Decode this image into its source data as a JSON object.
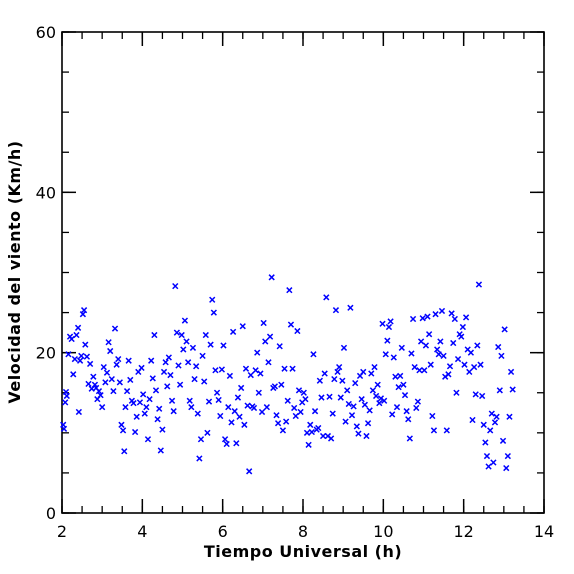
{
  "chart_data": {
    "type": "scatter",
    "xlabel": "Tiempo Universal (h)",
    "ylabel": "Velocidad del viento (Km/h)",
    "xlim": [
      2,
      14
    ],
    "ylim": [
      0,
      60
    ],
    "x_ticks": [
      2,
      4,
      6,
      8,
      10,
      12,
      14
    ],
    "y_ticks": [
      0,
      20,
      40,
      60
    ],
    "x_minor_step": 0.5,
    "y_minor_step": 5,
    "grid": false,
    "marker": "x",
    "marker_color": "#0000ff",
    "points": [
      [
        2.03,
        11.0
      ],
      [
        2.05,
        10.5
      ],
      [
        2.08,
        13.8
      ],
      [
        2.1,
        15.1
      ],
      [
        2.12,
        14.6
      ],
      [
        2.16,
        19.8
      ],
      [
        2.2,
        22.0
      ],
      [
        2.24,
        21.7
      ],
      [
        2.28,
        17.3
      ],
      [
        2.32,
        19.2
      ],
      [
        2.36,
        22.2
      ],
      [
        2.4,
        23.1
      ],
      [
        2.42,
        12.6
      ],
      [
        2.45,
        19.0
      ],
      [
        2.48,
        19.6
      ],
      [
        2.52,
        24.8
      ],
      [
        2.55,
        25.3
      ],
      [
        2.58,
        21.0
      ],
      [
        2.62,
        19.5
      ],
      [
        2.66,
        16.1
      ],
      [
        2.7,
        18.6
      ],
      [
        2.74,
        15.5
      ],
      [
        2.78,
        17.0
      ],
      [
        2.82,
        16.0
      ],
      [
        2.85,
        15.6
      ],
      [
        2.88,
        14.2
      ],
      [
        2.92,
        15.2
      ],
      [
        2.96,
        14.7
      ],
      [
        3.0,
        13.2
      ],
      [
        3.04,
        18.2
      ],
      [
        3.08,
        16.3
      ],
      [
        3.12,
        17.5
      ],
      [
        3.16,
        21.3
      ],
      [
        3.2,
        20.2
      ],
      [
        3.24,
        16.7
      ],
      [
        3.28,
        15.2
      ],
      [
        3.32,
        23.0
      ],
      [
        3.36,
        18.5
      ],
      [
        3.4,
        19.2
      ],
      [
        3.44,
        16.3
      ],
      [
        3.48,
        11.0
      ],
      [
        3.52,
        10.3
      ],
      [
        3.55,
        7.7
      ],
      [
        3.58,
        13.2
      ],
      [
        3.62,
        15.2
      ],
      [
        3.66,
        19.0
      ],
      [
        3.7,
        16.6
      ],
      [
        3.74,
        14.0
      ],
      [
        3.78,
        13.7
      ],
      [
        3.82,
        10.1
      ],
      [
        3.86,
        12.0
      ],
      [
        3.9,
        17.6
      ],
      [
        3.94,
        13.8
      ],
      [
        3.98,
        18.1
      ],
      [
        4.02,
        14.8
      ],
      [
        4.06,
        12.4
      ],
      [
        4.1,
        13.2
      ],
      [
        4.14,
        9.2
      ],
      [
        4.18,
        14.2
      ],
      [
        4.22,
        19.0
      ],
      [
        4.26,
        16.8
      ],
      [
        4.3,
        22.2
      ],
      [
        4.34,
        15.3
      ],
      [
        4.38,
        11.7
      ],
      [
        4.42,
        13.0
      ],
      [
        4.46,
        7.8
      ],
      [
        4.5,
        10.4
      ],
      [
        4.54,
        17.6
      ],
      [
        4.58,
        18.8
      ],
      [
        4.62,
        15.8
      ],
      [
        4.66,
        19.4
      ],
      [
        4.7,
        17.2
      ],
      [
        4.74,
        14.0
      ],
      [
        4.78,
        12.7
      ],
      [
        4.82,
        28.3
      ],
      [
        4.86,
        22.5
      ],
      [
        4.9,
        18.4
      ],
      [
        4.94,
        16.0
      ],
      [
        4.98,
        22.2
      ],
      [
        5.02,
        20.4
      ],
      [
        5.06,
        24.0
      ],
      [
        5.1,
        21.4
      ],
      [
        5.14,
        18.8
      ],
      [
        5.18,
        14.0
      ],
      [
        5.22,
        13.2
      ],
      [
        5.26,
        20.6
      ],
      [
        5.3,
        16.7
      ],
      [
        5.34,
        18.3
      ],
      [
        5.38,
        12.4
      ],
      [
        5.42,
        6.8
      ],
      [
        5.46,
        9.2
      ],
      [
        5.5,
        19.6
      ],
      [
        5.54,
        16.4
      ],
      [
        5.58,
        22.2
      ],
      [
        5.62,
        10.0
      ],
      [
        5.66,
        13.9
      ],
      [
        5.7,
        21.0
      ],
      [
        5.74,
        26.6
      ],
      [
        5.78,
        25.0
      ],
      [
        5.82,
        17.8
      ],
      [
        5.86,
        15.0
      ],
      [
        5.9,
        14.1
      ],
      [
        5.94,
        12.1
      ],
      [
        5.98,
        17.9
      ],
      [
        6.02,
        20.9
      ],
      [
        6.06,
        9.2
      ],
      [
        6.1,
        8.6
      ],
      [
        6.14,
        13.2
      ],
      [
        6.18,
        17.1
      ],
      [
        6.22,
        11.3
      ],
      [
        6.26,
        22.6
      ],
      [
        6.3,
        12.7
      ],
      [
        6.34,
        8.7
      ],
      [
        6.38,
        14.4
      ],
      [
        6.42,
        12.0
      ],
      [
        6.46,
        15.6
      ],
      [
        6.5,
        23.3
      ],
      [
        6.54,
        11.0
      ],
      [
        6.58,
        18.0
      ],
      [
        6.62,
        13.4
      ],
      [
        6.66,
        5.2
      ],
      [
        6.7,
        17.2
      ],
      [
        6.74,
        13.3
      ],
      [
        6.78,
        13.1
      ],
      [
        6.82,
        17.8
      ],
      [
        6.86,
        20.0
      ],
      [
        6.9,
        15.0
      ],
      [
        6.94,
        17.4
      ],
      [
        6.98,
        12.6
      ],
      [
        7.02,
        23.7
      ],
      [
        7.06,
        21.4
      ],
      [
        7.1,
        13.2
      ],
      [
        7.14,
        18.8
      ],
      [
        7.18,
        22.0
      ],
      [
        7.22,
        29.4
      ],
      [
        7.26,
        15.6
      ],
      [
        7.3,
        15.8
      ],
      [
        7.34,
        12.2
      ],
      [
        7.38,
        11.2
      ],
      [
        7.42,
        20.8
      ],
      [
        7.46,
        16.0
      ],
      [
        7.5,
        10.3
      ],
      [
        7.54,
        18.0
      ],
      [
        7.58,
        11.4
      ],
      [
        7.62,
        14.0
      ],
      [
        7.66,
        27.8
      ],
      [
        7.7,
        23.5
      ],
      [
        7.74,
        18.0
      ],
      [
        7.78,
        13.1
      ],
      [
        7.82,
        12.1
      ],
      [
        7.86,
        22.7
      ],
      [
        7.9,
        15.3
      ],
      [
        7.94,
        12.6
      ],
      [
        7.98,
        13.8
      ],
      [
        8.02,
        15.0
      ],
      [
        8.06,
        14.2
      ],
      [
        8.1,
        10.0
      ],
      [
        8.14,
        8.5
      ],
      [
        8.18,
        11.0
      ],
      [
        8.22,
        10.1
      ],
      [
        8.26,
        19.8
      ],
      [
        8.3,
        12.7
      ],
      [
        8.34,
        10.4
      ],
      [
        8.38,
        10.6
      ],
      [
        8.42,
        16.5
      ],
      [
        8.46,
        14.4
      ],
      [
        8.5,
        9.6
      ],
      [
        8.54,
        17.4
      ],
      [
        8.58,
        26.9
      ],
      [
        8.62,
        9.6
      ],
      [
        8.66,
        14.5
      ],
      [
        8.7,
        9.3
      ],
      [
        8.74,
        12.4
      ],
      [
        8.78,
        16.7
      ],
      [
        8.82,
        25.3
      ],
      [
        8.86,
        17.6
      ],
      [
        8.9,
        18.2
      ],
      [
        8.94,
        14.4
      ],
      [
        8.98,
        16.5
      ],
      [
        9.02,
        20.6
      ],
      [
        9.06,
        11.4
      ],
      [
        9.1,
        15.3
      ],
      [
        9.14,
        13.6
      ],
      [
        9.18,
        25.6
      ],
      [
        9.22,
        12.2
      ],
      [
        9.26,
        13.3
      ],
      [
        9.3,
        16.2
      ],
      [
        9.34,
        10.8
      ],
      [
        9.38,
        9.9
      ],
      [
        9.42,
        17.1
      ],
      [
        9.46,
        14.2
      ],
      [
        9.5,
        17.6
      ],
      [
        9.54,
        13.5
      ],
      [
        9.58,
        9.6
      ],
      [
        9.62,
        11.2
      ],
      [
        9.66,
        12.8
      ],
      [
        9.7,
        17.4
      ],
      [
        9.74,
        15.3
      ],
      [
        9.78,
        18.2
      ],
      [
        9.82,
        14.6
      ],
      [
        9.86,
        16.0
      ],
      [
        9.9,
        13.7
      ],
      [
        9.94,
        14.3
      ],
      [
        9.98,
        23.6
      ],
      [
        10.02,
        14.0
      ],
      [
        10.06,
        19.8
      ],
      [
        10.1,
        21.5
      ],
      [
        10.14,
        23.2
      ],
      [
        10.18,
        23.9
      ],
      [
        10.22,
        12.3
      ],
      [
        10.26,
        19.4
      ],
      [
        10.3,
        17.0
      ],
      [
        10.34,
        13.2
      ],
      [
        10.38,
        15.7
      ],
      [
        10.42,
        17.1
      ],
      [
        10.46,
        20.6
      ],
      [
        10.5,
        16.0
      ],
      [
        10.54,
        14.7
      ],
      [
        10.58,
        12.7
      ],
      [
        10.62,
        11.7
      ],
      [
        10.66,
        9.3
      ],
      [
        10.7,
        19.9
      ],
      [
        10.74,
        24.2
      ],
      [
        10.78,
        18.2
      ],
      [
        10.82,
        13.1
      ],
      [
        10.86,
        13.9
      ],
      [
        10.9,
        17.8
      ],
      [
        10.94,
        21.4
      ],
      [
        10.98,
        24.3
      ],
      [
        11.02,
        17.8
      ],
      [
        11.06,
        20.9
      ],
      [
        11.1,
        24.5
      ],
      [
        11.14,
        22.3
      ],
      [
        11.18,
        18.5
      ],
      [
        11.22,
        12.1
      ],
      [
        11.26,
        10.3
      ],
      [
        11.3,
        24.8
      ],
      [
        11.34,
        20.4
      ],
      [
        11.38,
        19.8
      ],
      [
        11.42,
        21.4
      ],
      [
        11.46,
        25.2
      ],
      [
        11.5,
        19.6
      ],
      [
        11.54,
        17.0
      ],
      [
        11.58,
        10.3
      ],
      [
        11.62,
        17.3
      ],
      [
        11.66,
        18.3
      ],
      [
        11.7,
        24.9
      ],
      [
        11.74,
        21.2
      ],
      [
        11.78,
        24.2
      ],
      [
        11.82,
        15.0
      ],
      [
        11.86,
        19.2
      ],
      [
        11.9,
        22.3
      ],
      [
        11.94,
        22.0
      ],
      [
        11.98,
        23.2
      ],
      [
        12.02,
        18.5
      ],
      [
        12.06,
        24.4
      ],
      [
        12.1,
        20.4
      ],
      [
        12.14,
        17.6
      ],
      [
        12.18,
        20.0
      ],
      [
        12.22,
        11.6
      ],
      [
        12.26,
        18.2
      ],
      [
        12.3,
        14.8
      ],
      [
        12.34,
        20.9
      ],
      [
        12.38,
        28.5
      ],
      [
        12.42,
        18.5
      ],
      [
        12.46,
        14.6
      ],
      [
        12.5,
        11.0
      ],
      [
        12.54,
        8.8
      ],
      [
        12.58,
        7.1
      ],
      [
        12.62,
        5.8
      ],
      [
        12.66,
        10.3
      ],
      [
        12.7,
        12.4
      ],
      [
        12.74,
        6.3
      ],
      [
        12.78,
        11.3
      ],
      [
        12.82,
        12.0
      ],
      [
        12.86,
        20.7
      ],
      [
        12.9,
        15.3
      ],
      [
        12.94,
        19.6
      ],
      [
        12.98,
        9.0
      ],
      [
        13.02,
        22.9
      ],
      [
        13.06,
        5.6
      ],
      [
        13.1,
        7.1
      ],
      [
        13.14,
        12.0
      ],
      [
        13.18,
        17.6
      ],
      [
        13.22,
        15.4
      ]
    ]
  }
}
